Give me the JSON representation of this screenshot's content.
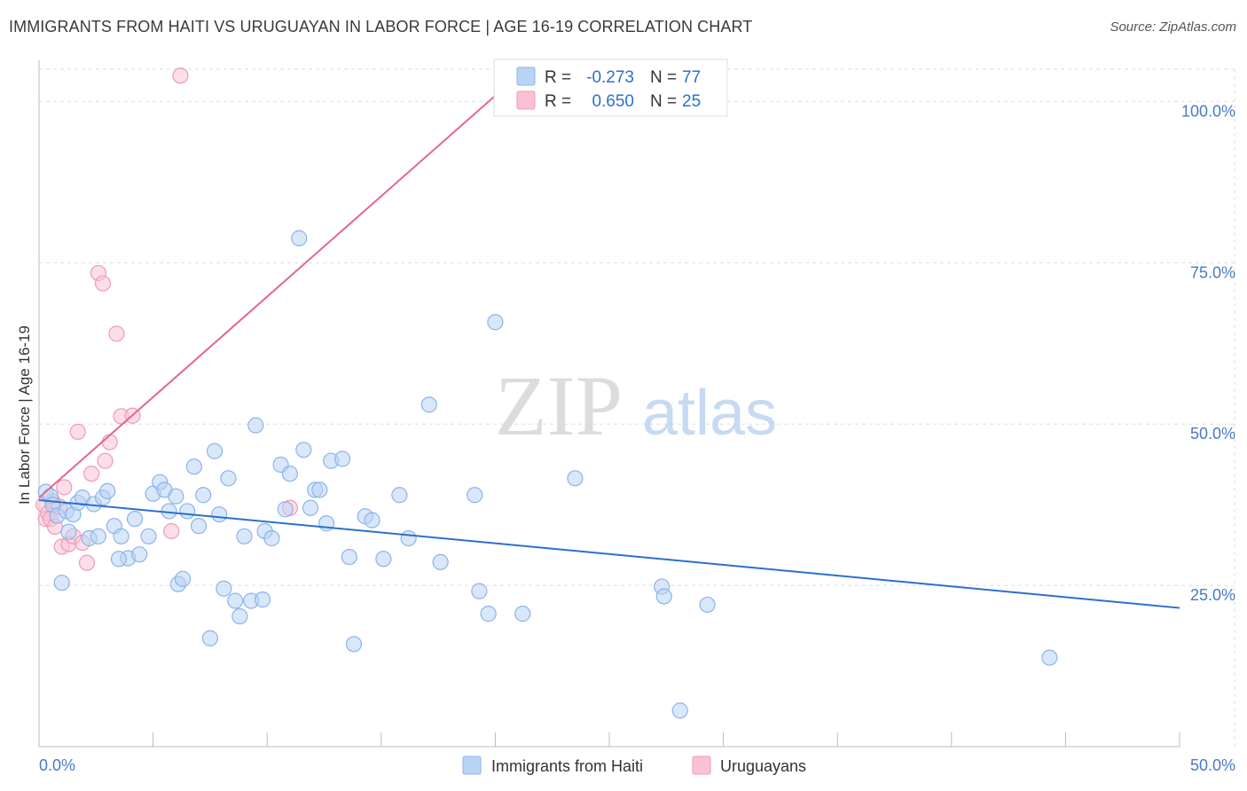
{
  "header": {
    "title": "IMMIGRANTS FROM HAITI VS URUGUAYAN IN LABOR FORCE | AGE 16-19 CORRELATION CHART",
    "source": "Source: ZipAtlas.com"
  },
  "watermark": {
    "zip": "ZIP",
    "atlas": "atlas"
  },
  "legend_box": {
    "rows": [
      {
        "r_label": "R = ",
        "r_value": "-0.273",
        "n_label": "N = ",
        "n_value": "77",
        "color": "#b9d3f5"
      },
      {
        "r_label": "R = ",
        "r_value": "0.650",
        "n_label": "N = ",
        "n_value": "25",
        "color": "#f9c2d3"
      }
    ]
  },
  "chart_data": {
    "type": "scatter",
    "title": "IMMIGRANTS FROM HAITI VS URUGUAYAN IN LABOR FORCE | AGE 16-19 CORRELATION CHART",
    "xlabel": "",
    "ylabel": "In Labor Force | Age 16-19",
    "xlim": [
      0,
      50
    ],
    "ylim": [
      0,
      105
    ],
    "x_tick_labels": [
      "0.0%",
      "50.0%"
    ],
    "y_ticks": [
      25,
      50,
      75,
      100
    ],
    "y_tick_labels": [
      "25.0%",
      "50.0%",
      "75.0%",
      "100.0%"
    ],
    "grid": true,
    "legend": [
      "Immigrants from Haiti",
      "Uruguayans"
    ],
    "colors": {
      "haiti_fill": "#b9d3f5",
      "haiti_stroke": "#8bb4e8",
      "haiti_line": "#2b6fd0",
      "uru_fill": "#f9c2d3",
      "uru_stroke": "#f09ab5",
      "uru_line": "#e5668e",
      "tick_label": "#4a78c8"
    },
    "series": [
      {
        "name": "Immigrants from Haiti",
        "r": -0.273,
        "n": 77,
        "trend": {
          "x": [
            0,
            50
          ],
          "y": [
            38.2,
            21.5
          ]
        },
        "points": [
          [
            0.3,
            39.5
          ],
          [
            0.5,
            38.8
          ],
          [
            0.6,
            37.5
          ],
          [
            0.8,
            35.8
          ],
          [
            1.0,
            25.4
          ],
          [
            1.2,
            36.5
          ],
          [
            1.5,
            36.0
          ],
          [
            1.7,
            37.8
          ],
          [
            1.9,
            38.6
          ],
          [
            2.2,
            32.3
          ],
          [
            2.4,
            37.6
          ],
          [
            2.6,
            32.6
          ],
          [
            2.8,
            38.6
          ],
          [
            3.0,
            39.6
          ],
          [
            3.3,
            34.2
          ],
          [
            3.6,
            32.6
          ],
          [
            3.9,
            29.2
          ],
          [
            4.2,
            35.3
          ],
          [
            4.4,
            29.8
          ],
          [
            4.8,
            32.6
          ],
          [
            5.0,
            39.2
          ],
          [
            5.3,
            41.0
          ],
          [
            5.5,
            39.8
          ],
          [
            5.7,
            36.5
          ],
          [
            6.0,
            38.8
          ],
          [
            6.1,
            25.2
          ],
          [
            6.3,
            26.0
          ],
          [
            6.5,
            36.5
          ],
          [
            6.8,
            43.4
          ],
          [
            7.0,
            34.2
          ],
          [
            7.2,
            39.0
          ],
          [
            7.5,
            16.8
          ],
          [
            7.7,
            45.8
          ],
          [
            7.9,
            36.0
          ],
          [
            8.1,
            24.5
          ],
          [
            8.3,
            41.6
          ],
          [
            8.6,
            22.6
          ],
          [
            8.8,
            20.2
          ],
          [
            9.0,
            32.6
          ],
          [
            9.3,
            22.6
          ],
          [
            9.5,
            49.8
          ],
          [
            9.8,
            22.8
          ],
          [
            9.9,
            33.4
          ],
          [
            10.2,
            32.3
          ],
          [
            10.6,
            43.7
          ],
          [
            10.8,
            36.8
          ],
          [
            11.0,
            42.3
          ],
          [
            11.4,
            78.8
          ],
          [
            11.6,
            46.0
          ],
          [
            11.9,
            37.0
          ],
          [
            12.1,
            39.8
          ],
          [
            12.3,
            39.8
          ],
          [
            12.6,
            34.6
          ],
          [
            12.8,
            44.3
          ],
          [
            13.3,
            44.6
          ],
          [
            13.6,
            29.4
          ],
          [
            13.8,
            15.9
          ],
          [
            14.3,
            35.7
          ],
          [
            14.6,
            35.1
          ],
          [
            15.1,
            29.1
          ],
          [
            15.8,
            39.0
          ],
          [
            16.2,
            32.3
          ],
          [
            17.1,
            53.0
          ],
          [
            17.6,
            28.6
          ],
          [
            19.1,
            39.0
          ],
          [
            19.3,
            24.1
          ],
          [
            19.7,
            20.6
          ],
          [
            20.0,
            65.8
          ],
          [
            21.2,
            20.6
          ],
          [
            23.5,
            41.6
          ],
          [
            27.3,
            24.8
          ],
          [
            27.4,
            23.3
          ],
          [
            28.1,
            5.6
          ],
          [
            29.3,
            22.0
          ],
          [
            44.3,
            13.8
          ],
          [
            1.3,
            33.3
          ],
          [
            3.5,
            29.1
          ]
        ]
      },
      {
        "name": "Uruguayans",
        "r": 0.65,
        "n": 25,
        "trend": {
          "x": [
            0,
            21.0
          ],
          "y": [
            38.6,
            104.0
          ]
        },
        "points": [
          [
            0.2,
            37.5
          ],
          [
            0.3,
            35.3
          ],
          [
            0.4,
            36.2
          ],
          [
            0.5,
            35.3
          ],
          [
            0.6,
            38.0
          ],
          [
            0.7,
            34.1
          ],
          [
            0.9,
            37.2
          ],
          [
            1.0,
            31.0
          ],
          [
            1.1,
            40.2
          ],
          [
            1.3,
            31.4
          ],
          [
            1.5,
            32.6
          ],
          [
            1.7,
            48.8
          ],
          [
            1.9,
            31.6
          ],
          [
            2.1,
            28.5
          ],
          [
            2.3,
            42.3
          ],
          [
            2.6,
            73.4
          ],
          [
            2.8,
            71.8
          ],
          [
            2.9,
            44.3
          ],
          [
            3.1,
            47.2
          ],
          [
            3.4,
            64.0
          ],
          [
            3.6,
            51.2
          ],
          [
            4.1,
            51.3
          ],
          [
            5.8,
            33.4
          ],
          [
            6.2,
            104.0
          ],
          [
            11.0,
            37.0
          ]
        ]
      }
    ]
  },
  "bottom_legend": {
    "haiti_label": "Immigrants from Haiti",
    "uru_label": "Uruguayans"
  }
}
